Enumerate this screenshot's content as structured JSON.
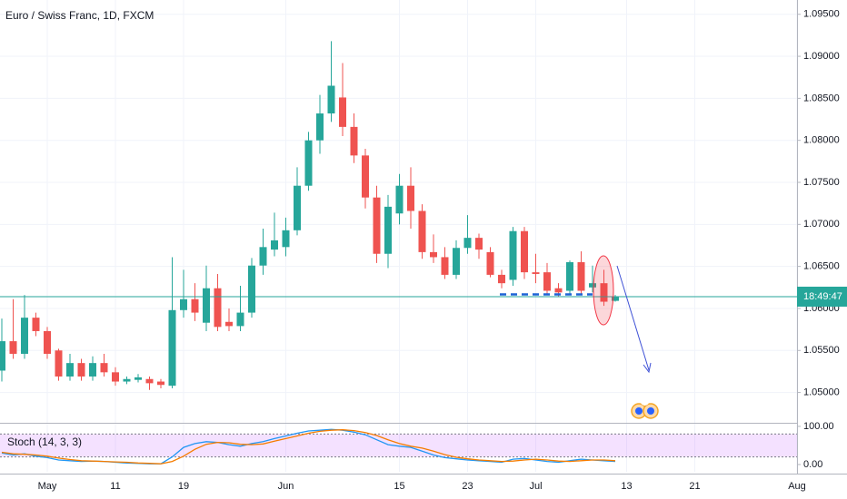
{
  "chart_data": [
    {
      "type": "candlestick",
      "title": "Euro / Swiss Franc, 1D, FXCM",
      "countdown": "18:49:47",
      "x": [
        -4,
        -3,
        -2,
        -1,
        0,
        1,
        2,
        3,
        4,
        5,
        6,
        7,
        8,
        9,
        10,
        11,
        12,
        13,
        14,
        15,
        16,
        17,
        18,
        19,
        20,
        21,
        22,
        23,
        24,
        25,
        26,
        27,
        28,
        29,
        30,
        31,
        32,
        33,
        34,
        35,
        36,
        37,
        38,
        39,
        40,
        41,
        42,
        43,
        44,
        45,
        46,
        47,
        48,
        49,
        50
      ],
      "open": [
        1.0526,
        1.0561,
        1.0546,
        1.0589,
        1.0573,
        1.055,
        1.0519,
        1.0535,
        1.0519,
        1.0535,
        1.0524,
        1.0513,
        1.0515,
        1.0516,
        1.0513,
        1.0508,
        1.0598,
        1.0611,
        1.0583,
        1.0624,
        1.0584,
        1.0579,
        1.0595,
        1.0651,
        1.067,
        1.0673,
        1.0693,
        1.0746,
        1.08,
        1.0832,
        1.0851,
        1.0816,
        1.0782,
        1.0732,
        1.0665,
        1.0713,
        1.0746,
        1.0716,
        1.0667,
        1.0661,
        1.064,
        1.0672,
        1.0684,
        1.0667,
        1.064,
        1.0634,
        1.0692,
        1.0643,
        1.0643,
        1.0624,
        1.0621,
        1.0655,
        1.0625,
        1.063,
        1.0609
      ],
      "high": [
        1.0588,
        1.0611,
        1.0616,
        1.0595,
        1.0578,
        1.0552,
        1.0546,
        1.054,
        1.0543,
        1.0546,
        1.053,
        1.0519,
        1.0522,
        1.0519,
        1.0516,
        1.0661,
        1.0646,
        1.063,
        1.0651,
        1.0641,
        1.06,
        1.0627,
        1.066,
        1.0695,
        1.0714,
        1.0708,
        1.0768,
        1.081,
        1.0854,
        1.0918,
        1.0892,
        1.0832,
        1.079,
        1.0746,
        1.0735,
        1.076,
        1.0768,
        1.0724,
        1.0688,
        1.0673,
        1.0681,
        1.0711,
        1.0689,
        1.0673,
        1.0646,
        1.0697,
        1.0697,
        1.0665,
        1.0654,
        1.063,
        1.0657,
        1.0668,
        1.0651,
        1.0646,
        1.0616
      ],
      "low": [
        1.0513,
        1.054,
        1.054,
        1.0567,
        1.054,
        1.0514,
        1.0514,
        1.0514,
        1.0514,
        1.0519,
        1.0508,
        1.051,
        1.0512,
        1.0503,
        1.0505,
        1.0505,
        1.0589,
        1.0585,
        1.0573,
        1.0573,
        1.0573,
        1.0573,
        1.0589,
        1.064,
        1.0662,
        1.0662,
        1.0687,
        1.074,
        1.0784,
        1.0822,
        1.0805,
        1.0773,
        1.0719,
        1.0654,
        1.0648,
        1.07,
        1.0695,
        1.0659,
        1.0654,
        1.0635,
        1.0635,
        1.0665,
        1.0659,
        1.0637,
        1.0624,
        1.0627,
        1.0635,
        1.063,
        1.0616,
        1.0614,
        1.0616,
        1.0616,
        1.0619,
        1.0603,
        1.0608
      ],
      "close": [
        1.0561,
        1.0546,
        1.0589,
        1.0573,
        1.0546,
        1.0519,
        1.0535,
        1.0519,
        1.0535,
        1.0524,
        1.0513,
        1.0516,
        1.0518,
        1.0511,
        1.0509,
        1.0598,
        1.0611,
        1.0595,
        1.0624,
        1.0578,
        1.0579,
        1.0595,
        1.0651,
        1.0673,
        1.0681,
        1.0693,
        1.0746,
        1.08,
        1.0832,
        1.0865,
        1.0816,
        1.0782,
        1.0732,
        1.0665,
        1.0721,
        1.0746,
        1.0716,
        1.0667,
        1.0661,
        1.064,
        1.0672,
        1.0684,
        1.067,
        1.064,
        1.063,
        1.0692,
        1.0643,
        1.0641,
        1.0621,
        1.0619,
        1.0655,
        1.0621,
        1.063,
        1.0608,
        1.0614
      ],
      "up_color": "#26a69a",
      "down_color": "#ef5350",
      "xlim": [
        -4.16,
        66
      ],
      "xticks": [
        {
          "value": 0,
          "label": "May"
        },
        {
          "value": 6,
          "label": "11"
        },
        {
          "value": 12,
          "label": "19"
        },
        {
          "value": 21,
          "label": "Jun"
        },
        {
          "value": 31,
          "label": "15"
        },
        {
          "value": 37,
          "label": "23"
        },
        {
          "value": 43,
          "label": "Jul"
        },
        {
          "value": 51,
          "label": "13"
        },
        {
          "value": 57,
          "label": "21"
        },
        {
          "value": 66,
          "label": "Aug"
        }
      ],
      "ylim": [
        1.0465,
        1.0967
      ],
      "yticks": [
        {
          "value": 1.095,
          "label": "1.09500"
        },
        {
          "value": 1.09,
          "label": "1.09000"
        },
        {
          "value": 1.085,
          "label": "1.08500"
        },
        {
          "value": 1.08,
          "label": "1.08000"
        },
        {
          "value": 1.075,
          "label": "1.07500"
        },
        {
          "value": 1.07,
          "label": "1.07000"
        },
        {
          "value": 1.065,
          "label": "1.06500"
        },
        {
          "value": 1.06,
          "label": "1.06000"
        },
        {
          "value": 1.055,
          "label": "1.05500"
        },
        {
          "value": 1.05,
          "label": "1.05000"
        }
      ],
      "grid": true
    },
    {
      "type": "line",
      "title": "Stoch (14, 3, 3)",
      "x": [
        -4,
        -3,
        -2,
        -1,
        0,
        1,
        2,
        3,
        4,
        5,
        6,
        7,
        8,
        9,
        10,
        11,
        12,
        13,
        14,
        15,
        16,
        17,
        18,
        19,
        20,
        21,
        22,
        23,
        24,
        25,
        26,
        27,
        28,
        29,
        30,
        31,
        32,
        33,
        34,
        35,
        36,
        37,
        38,
        39,
        40,
        41,
        42,
        43,
        44,
        45,
        46,
        47,
        48,
        49,
        50
      ],
      "series": [
        {
          "color": "#2196f3",
          "values": [
            30,
            25,
            28,
            22,
            18,
            12,
            10,
            8,
            9,
            8,
            6,
            4,
            3,
            2,
            2,
            20,
            45,
            55,
            60,
            58,
            52,
            48,
            55,
            60,
            68,
            75,
            82,
            88,
            90,
            92,
            90,
            85,
            78,
            65,
            52,
            48,
            45,
            35,
            25,
            18,
            15,
            12,
            10,
            8,
            6,
            14,
            16,
            12,
            8,
            6,
            10,
            14,
            12,
            10,
            8
          ]
        },
        {
          "color": "#f57c00",
          "values": [
            32,
            28,
            27,
            25,
            22,
            17,
            13,
            10,
            9,
            8,
            7,
            6,
            4,
            3,
            2,
            8,
            22,
            40,
            53,
            58,
            57,
            53,
            52,
            54,
            61,
            68,
            75,
            82,
            87,
            90,
            91,
            89,
            84,
            76,
            65,
            55,
            48,
            43,
            35,
            26,
            19,
            15,
            12,
            10,
            8,
            9,
            12,
            14,
            12,
            9,
            8,
            10,
            12,
            12,
            10
          ]
        }
      ],
      "bands": [
        20,
        80
      ],
      "xlim": [
        -4.16,
        66
      ],
      "ylim": [
        -19,
        107
      ],
      "yticks": [
        {
          "value": 100,
          "label": "100.00"
        },
        {
          "value": 0,
          "label": "0.00"
        }
      ]
    }
  ]
}
